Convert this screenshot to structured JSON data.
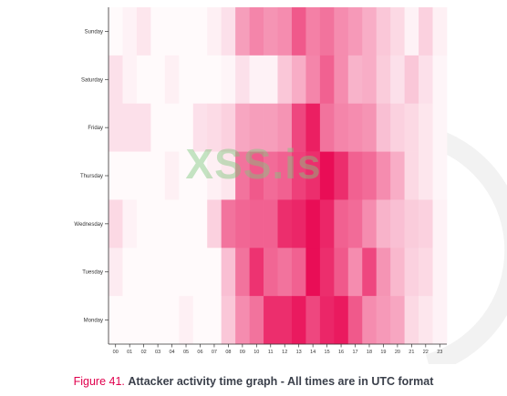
{
  "caption": {
    "figure_number": "Figure 41.",
    "text": "Attacker activity time graph - All times are in UTC format"
  },
  "watermark": {
    "text": "XSS.is"
  },
  "colors": {
    "max": "#e8004d",
    "min": "#ffffff",
    "caption_accent": "#e0004d"
  },
  "chart_data": {
    "type": "heatmap",
    "x": [
      "00",
      "01",
      "02",
      "03",
      "04",
      "05",
      "06",
      "07",
      "08",
      "09",
      "10",
      "11",
      "12",
      "13",
      "14",
      "15",
      "16",
      "17",
      "18",
      "19",
      "20",
      "21",
      "22",
      "23"
    ],
    "y": [
      "Sunday",
      "Saturday",
      "Friday",
      "Thursday",
      "Wednesday",
      "Tuesday",
      "Monday"
    ],
    "values": [
      [
        0.02,
        0.05,
        0.1,
        0.02,
        0.02,
        0.02,
        0.02,
        0.06,
        0.12,
        0.38,
        0.48,
        0.42,
        0.45,
        0.65,
        0.5,
        0.55,
        0.45,
        0.4,
        0.32,
        0.22,
        0.15,
        0.05,
        0.18,
        0.06
      ],
      [
        0.12,
        0.05,
        0.02,
        0.02,
        0.06,
        0.02,
        0.02,
        0.02,
        0.04,
        0.12,
        0.05,
        0.05,
        0.22,
        0.32,
        0.48,
        0.62,
        0.45,
        0.3,
        0.32,
        0.2,
        0.12,
        0.22,
        0.12,
        0.04
      ],
      [
        0.12,
        0.12,
        0.12,
        0.02,
        0.02,
        0.02,
        0.12,
        0.14,
        0.18,
        0.35,
        0.38,
        0.38,
        0.42,
        0.72,
        0.88,
        0.55,
        0.48,
        0.45,
        0.42,
        0.25,
        0.18,
        0.15,
        0.1,
        0.04
      ],
      [
        0.02,
        0.02,
        0.02,
        0.02,
        0.06,
        0.02,
        0.02,
        0.06,
        0.1,
        0.55,
        0.65,
        0.58,
        0.62,
        0.75,
        0.82,
        0.95,
        0.82,
        0.62,
        0.58,
        0.45,
        0.32,
        0.15,
        0.1,
        0.04
      ],
      [
        0.15,
        0.05,
        0.02,
        0.02,
        0.02,
        0.02,
        0.02,
        0.18,
        0.55,
        0.6,
        0.62,
        0.62,
        0.82,
        0.85,
        0.95,
        0.85,
        0.62,
        0.58,
        0.45,
        0.3,
        0.25,
        0.2,
        0.18,
        0.05
      ],
      [
        0.08,
        0.02,
        0.02,
        0.02,
        0.02,
        0.02,
        0.02,
        0.02,
        0.25,
        0.55,
        0.8,
        0.6,
        0.55,
        0.62,
        0.95,
        0.82,
        0.65,
        0.45,
        0.72,
        0.42,
        0.28,
        0.18,
        0.15,
        0.05
      ],
      [
        0.02,
        0.02,
        0.02,
        0.02,
        0.02,
        0.06,
        0.02,
        0.02,
        0.22,
        0.45,
        0.55,
        0.82,
        0.82,
        0.9,
        0.72,
        0.85,
        0.9,
        0.65,
        0.45,
        0.4,
        0.35,
        0.15,
        0.1,
        0.05
      ]
    ]
  }
}
